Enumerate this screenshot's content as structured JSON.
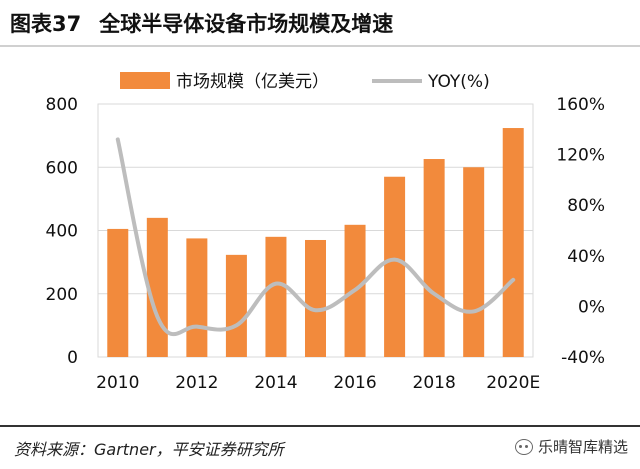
{
  "figure": {
    "label": "图表37",
    "title": "全球半导体设备市场规模及增速"
  },
  "source_text": "资料来源：Gartner，平安证券研究所",
  "watermark": {
    "icon": "wechat-icon",
    "text": "乐晴智库精选"
  },
  "colors": {
    "bar": "#f28a3c",
    "line": "#bdbdbd",
    "grid": "#d9d9d9"
  },
  "chart_data": {
    "type": "bar",
    "categories": [
      "2010",
      "2011",
      "2012",
      "2013",
      "2014",
      "2015",
      "2016",
      "2017",
      "2018",
      "2019",
      "2020E"
    ],
    "x_tick_labels": [
      "2010",
      "2012",
      "2014",
      "2016",
      "2018",
      "2020E"
    ],
    "series": [
      {
        "name": "市场规模（亿美元）",
        "type": "bar",
        "axis": "left",
        "values": [
          405,
          440,
          375,
          323,
          380,
          370,
          418,
          570,
          626,
          600,
          724
        ]
      },
      {
        "name": "YOY(%)",
        "type": "line",
        "axis": "right",
        "values": [
          132,
          -8,
          -16,
          -15,
          18,
          -3,
          13,
          37,
          10,
          -4,
          21
        ]
      }
    ],
    "left_axis": {
      "min": 0,
      "max": 800,
      "ticks": [
        0,
        200,
        400,
        600,
        800
      ]
    },
    "right_axis": {
      "min": -40,
      "max": 160,
      "ticks": [
        "-40%",
        "0%",
        "40%",
        "80%",
        "120%",
        "160%"
      ]
    },
    "grid": true,
    "legend_position": "top"
  }
}
